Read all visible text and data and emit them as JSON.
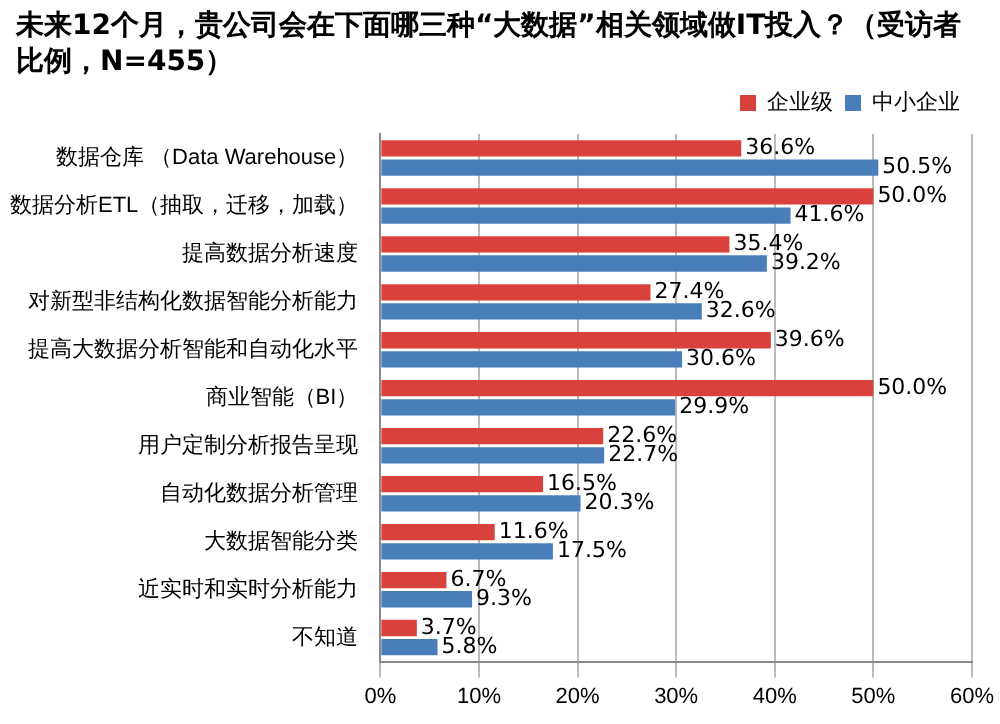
{
  "chart_data": {
    "type": "bar",
    "orientation": "horizontal",
    "title": "未来12个月，贵公司会在下面哪三种“大数据”相关领域做IT投入？（受访者比例，N=455）",
    "categories": [
      "数据仓库 （Data Warehouse）",
      "数据分析ETL（抽取，迁移，加载）",
      "提高数据分析速度",
      "对新型非结构化数据智能分析能力",
      "提高大数据分析智能和自动化水平",
      "商业智能（BI）",
      "用户定制分析报告呈现",
      "自动化数据分析管理",
      "大数据智能分类",
      "近实时和实时分析能力",
      "不知道"
    ],
    "series": [
      {
        "name": "企业级",
        "color": "#d9413c",
        "values": [
          36.6,
          50.0,
          35.4,
          27.4,
          39.6,
          50.0,
          22.6,
          16.5,
          11.6,
          6.7,
          3.7
        ],
        "value_labels": [
          "36.6%",
          "50.0%",
          "35.4%",
          "27.4%",
          "39.6%",
          "50.0%",
          "22.6%",
          "16.5%",
          "11.6%",
          "6.7%",
          "3.7%"
        ]
      },
      {
        "name": "中小企业",
        "color": "#4a7ebb",
        "values": [
          50.5,
          41.6,
          39.2,
          32.6,
          30.6,
          29.9,
          22.7,
          20.3,
          17.5,
          9.3,
          5.8
        ],
        "value_labels": [
          "50.5%",
          "41.6%",
          "39.2%",
          "32.6%",
          "30.6%",
          "29.9%",
          "22.7%",
          "20.3%",
          "17.5%",
          "9.3%",
          "5.8%"
        ]
      }
    ],
    "xlim": [
      0,
      60
    ],
    "xticks": [
      {
        "value": 0,
        "label": "0%"
      },
      {
        "value": 10,
        "label": "10%"
      },
      {
        "value": 20,
        "label": "20%"
      },
      {
        "value": 30,
        "label": "30%"
      },
      {
        "value": 40,
        "label": "40%"
      },
      {
        "value": 50,
        "label": "50%"
      },
      {
        "value": 60,
        "label": "60%"
      }
    ],
    "grid": "x",
    "legend": "top right"
  }
}
